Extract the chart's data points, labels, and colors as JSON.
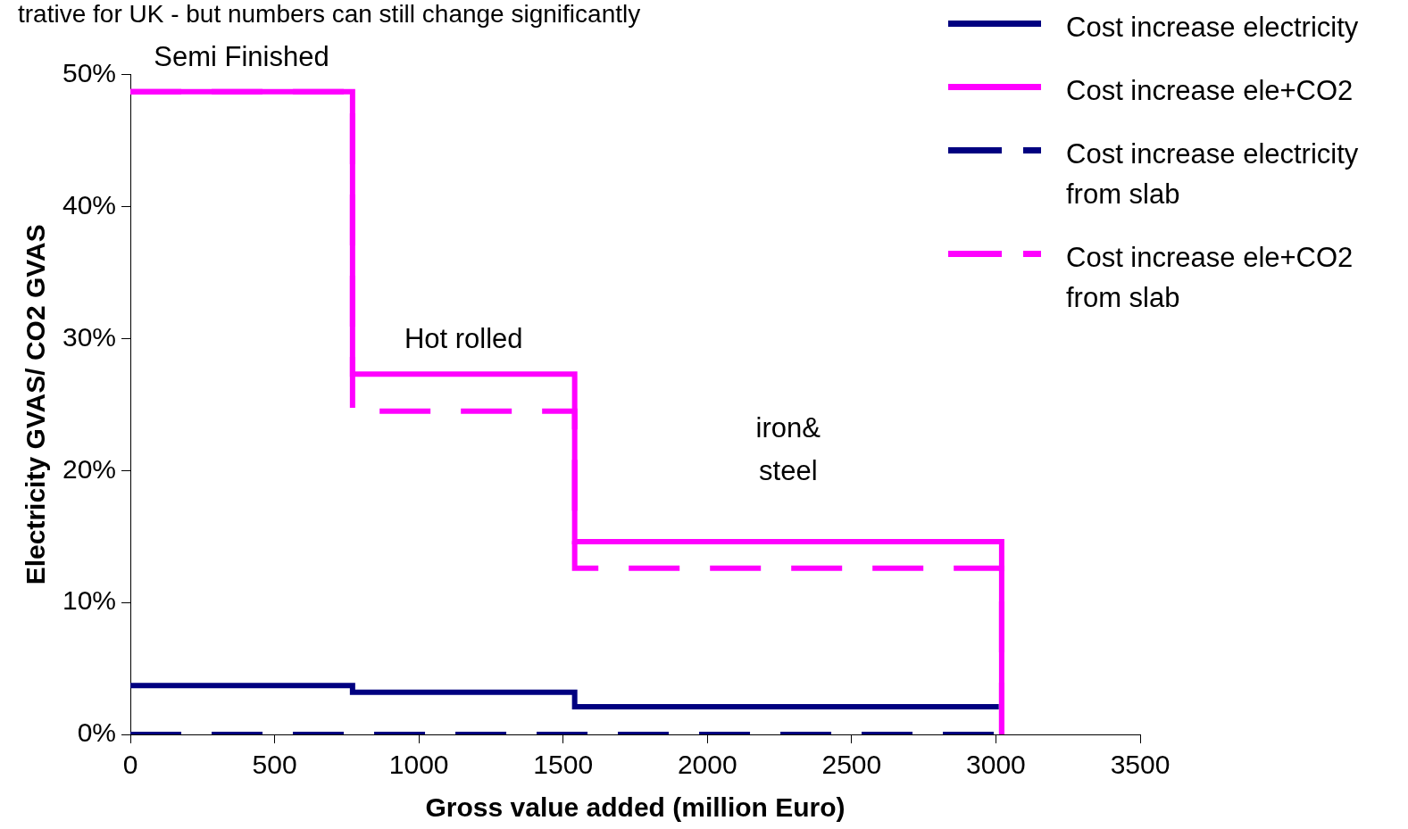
{
  "chart_data": {
    "type": "step",
    "title": "trative for UK - but numbers can still change significantly",
    "xlabel": "Gross value added (million Euro)",
    "ylabel": "Electricity GVAS/ CO2 GVAS",
    "series": [
      {
        "name": "Cost increase electricity",
        "color": "#000080",
        "line_style": "solid",
        "x": [
          0,
          770,
          1540,
          3010
        ],
        "values": [
          3.7,
          3.2,
          2.1,
          2.1
        ]
      },
      {
        "name": "Cost increase ele+CO2",
        "color": "#ff00ff",
        "line_style": "solid",
        "x": [
          0,
          770,
          1540,
          3020
        ],
        "values": [
          48.7,
          27.3,
          14.6,
          0
        ]
      },
      {
        "name": "Cost increase electricity from slab",
        "color": "#000080",
        "line_style": "dashed",
        "x": [
          0,
          3010
        ],
        "values": [
          0,
          0
        ]
      },
      {
        "name": "Cost increase ele+CO2 from slab",
        "color": "#ff00ff",
        "line_style": "dashed",
        "x": [
          0,
          770,
          1540,
          3020
        ],
        "values": [
          48.7,
          24.5,
          12.6,
          0
        ]
      }
    ],
    "xlim": [
      0,
      3500
    ],
    "xticks": [
      0,
      500,
      1000,
      1500,
      2000,
      2500,
      3000,
      3500
    ],
    "ylim": [
      0,
      50
    ],
    "yticks": [
      {
        "value": 0,
        "label": "0%"
      },
      {
        "value": 10,
        "label": "10%"
      },
      {
        "value": 20,
        "label": "20%"
      },
      {
        "value": 30,
        "label": "30%"
      },
      {
        "value": 40,
        "label": "40%"
      },
      {
        "value": 50,
        "label": "50%"
      }
    ],
    "annotations": [
      "Semi Finished",
      "Hot rolled",
      "iron&\nsteel"
    ],
    "grid": false,
    "legend": "top right",
    "marker": "none"
  }
}
